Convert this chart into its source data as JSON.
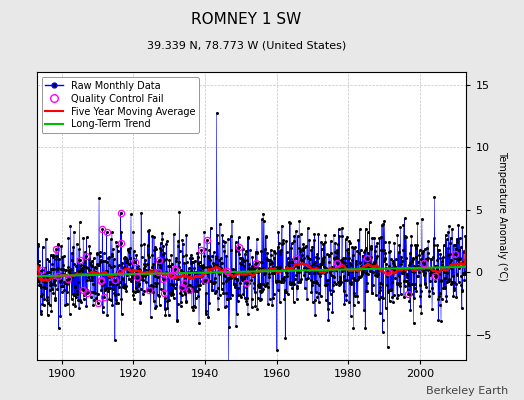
{
  "title": "ROMNEY 1 SW",
  "subtitle": "39.339 N, 78.773 W (United States)",
  "ylabel": "Temperature Anomaly (°C)",
  "xlim": [
    1893,
    2013
  ],
  "ylim": [
    -7,
    16
  ],
  "yticks": [
    -5,
    0,
    5,
    10,
    15
  ],
  "xticks": [
    1900,
    1920,
    1940,
    1960,
    1980,
    2000
  ],
  "start_year": 1893,
  "end_year": 2012,
  "seed": 42,
  "background_color": "#e8e8e8",
  "plot_bg_color": "#ffffff",
  "raw_line_color": "#0000ff",
  "raw_dot_color": "#000000",
  "qc_fail_color": "#ff00ff",
  "moving_avg_color": "#ff0000",
  "trend_color": "#00bb00",
  "legend_loc": "upper left",
  "figsize": [
    5.24,
    4.0
  ],
  "dpi": 100,
  "attribution": "Berkeley Earth",
  "title_fontsize": 11,
  "subtitle_fontsize": 8,
  "ylabel_fontsize": 7,
  "tick_fontsize": 8,
  "legend_fontsize": 7,
  "attribution_fontsize": 8
}
